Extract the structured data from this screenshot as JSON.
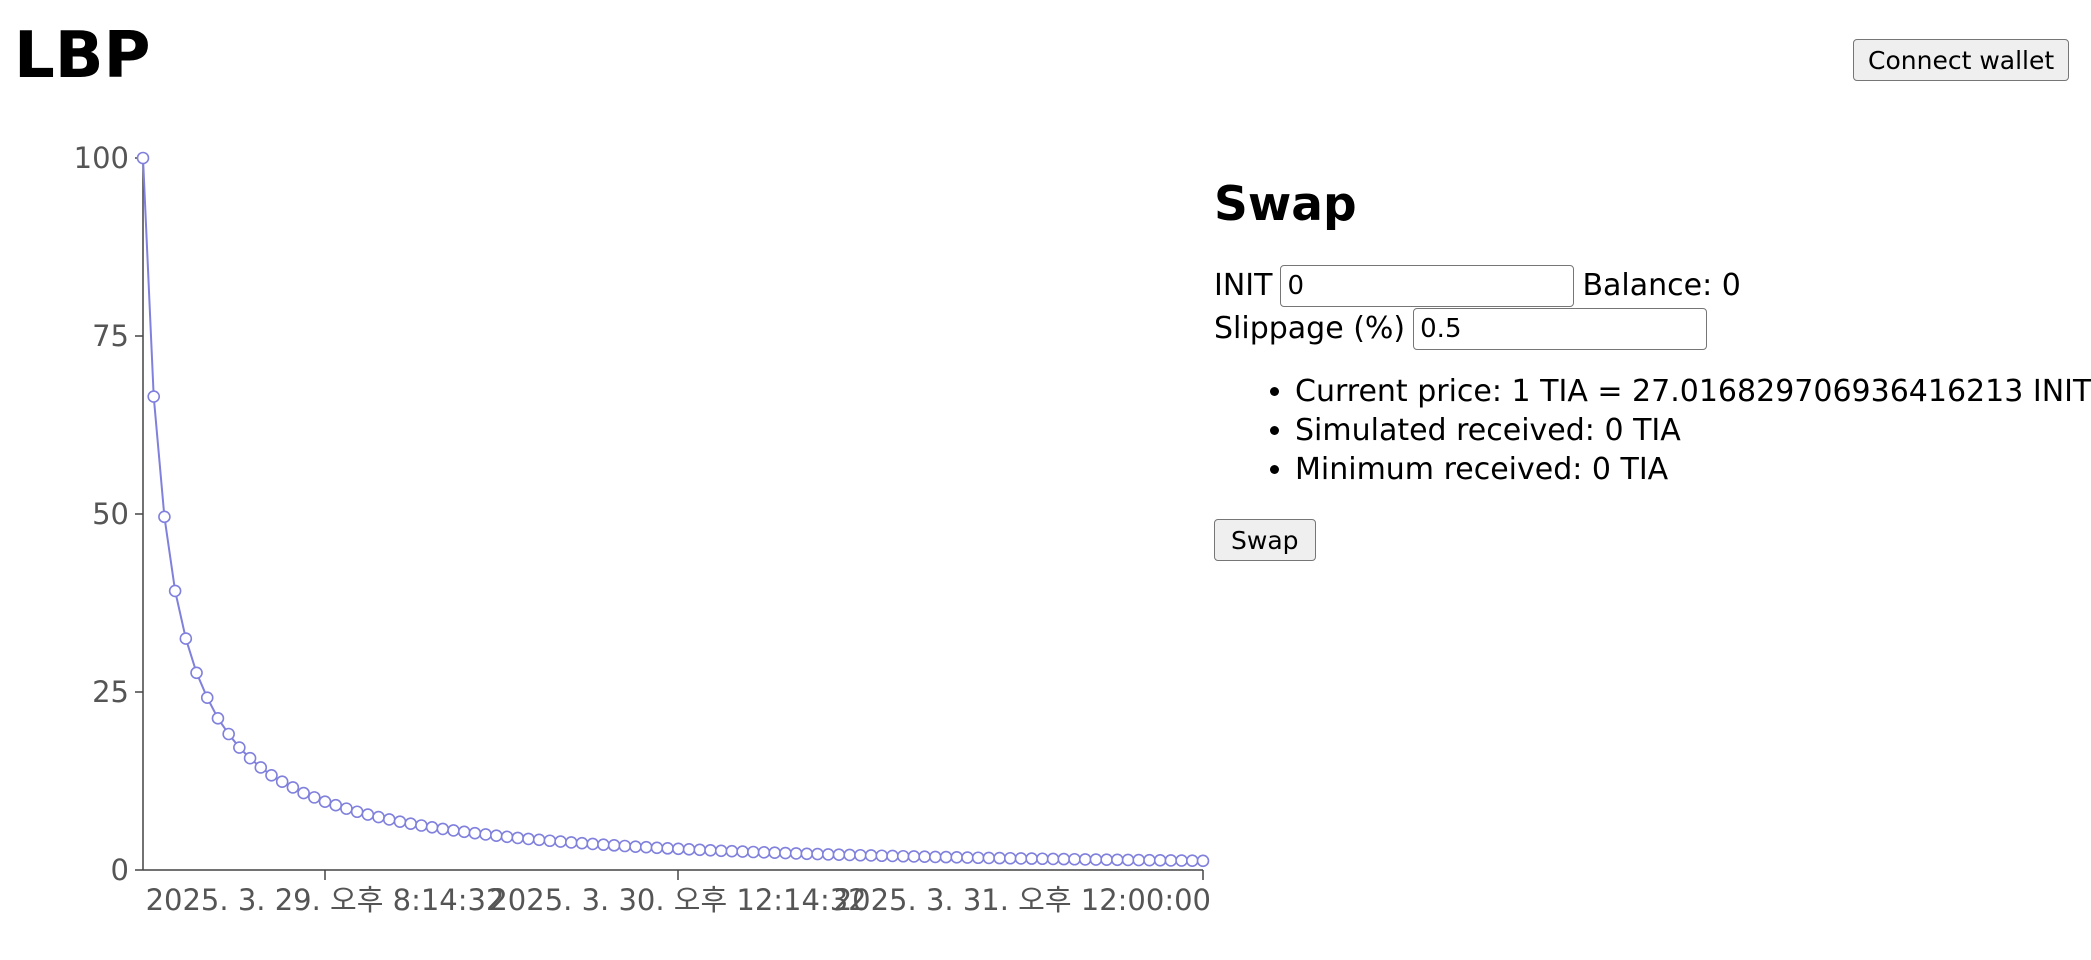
{
  "header": {
    "title": "LBP",
    "connect_label": "Connect wallet"
  },
  "swap": {
    "title": "Swap",
    "input_label": "INIT",
    "input_value": "0",
    "balance_label": "Balance:",
    "balance_value": "0",
    "slippage_label": "Slippage (%)",
    "slippage_value": "0.5",
    "info": [
      "Current price: 1 TIA = 27.016829706936416213 INIT",
      "Simulated received: 0 TIA",
      "Minimum received: 0 TIA"
    ],
    "button_label": "Swap"
  },
  "chart_data": {
    "type": "line",
    "title": "",
    "xlabel": "",
    "ylabel": "",
    "ylim": [
      0,
      100
    ],
    "y_ticks": [
      0,
      25,
      50,
      75,
      100
    ],
    "x_ticks": [
      "2025. 3. 29. 오후 8:14:32",
      "2025. 3. 30. 오후 12:14:32",
      "2025. 3. 31. 오후 12:00:00"
    ],
    "grid": false,
    "legend": false,
    "line_color": "#8080dd",
    "series": [
      {
        "values": [
          100.0,
          66.5,
          49.6,
          39.2,
          32.5,
          27.7,
          24.2,
          21.3,
          19.1,
          17.2,
          15.7,
          14.4,
          13.3,
          12.4,
          11.6,
          10.8,
          10.2,
          9.6,
          9.1,
          8.62,
          8.18,
          7.79,
          7.43,
          7.1,
          6.79,
          6.51,
          6.25,
          6.0,
          5.77,
          5.56,
          5.36,
          5.17,
          4.99,
          4.82,
          4.66,
          4.51,
          4.37,
          4.24,
          4.11,
          3.99,
          3.87,
          3.76,
          3.66,
          3.56,
          3.46,
          3.37,
          3.28,
          3.2,
          3.12,
          3.04,
          2.97,
          2.9,
          2.83,
          2.77,
          2.7,
          2.64,
          2.59,
          2.53,
          2.48,
          2.43,
          2.38,
          2.33,
          2.28,
          2.24,
          2.19,
          2.15,
          2.11,
          2.07,
          2.04,
          2.0,
          1.97,
          1.93,
          1.9,
          1.87,
          1.84,
          1.81,
          1.78,
          1.75,
          1.72,
          1.7,
          1.67,
          1.65,
          1.62,
          1.6,
          1.58,
          1.55,
          1.53,
          1.51,
          1.49,
          1.47,
          1.45,
          1.43,
          1.41,
          1.39,
          1.38,
          1.36,
          1.34,
          1.32,
          1.31,
          1.29
        ]
      }
    ]
  }
}
